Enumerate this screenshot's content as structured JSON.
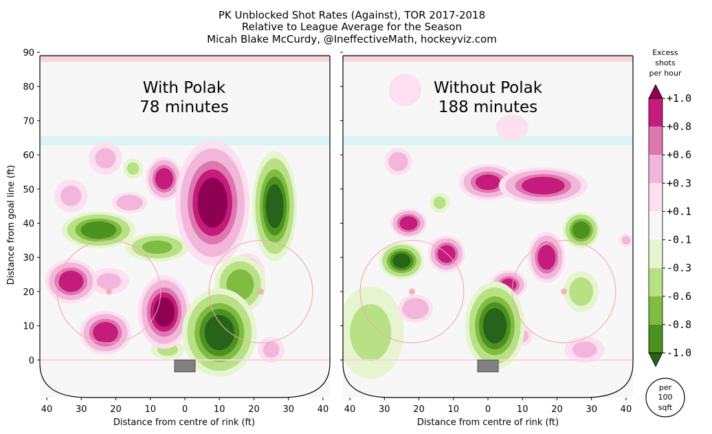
{
  "title": {
    "line1": "PK Unblocked Shot Rates (Against), TOR 2017-2018",
    "line2": "Relative to League Average for the Season",
    "line3": "Micah Blake McCurdy, @IneffectiveMath, hockeyviz.com"
  },
  "colors": {
    "rink_background": "#f7f7f7",
    "rink_outline": "#000000",
    "faceoff_circle": "#f4a7a7",
    "blue_line": "#d9f4f3",
    "red_line": "#f6d6d9",
    "net": "#808080"
  },
  "chart_data": [
    {
      "type": "heatmap",
      "panel": "left",
      "annotation_line1": "With Polak",
      "annotation_line2": "78 minutes",
      "xlabel": "Distance from centre of rink (ft)",
      "ylabel": "Distance from goal line (ft)",
      "xlim": [
        42,
        -42
      ],
      "ylim": [
        -11,
        90
      ],
      "xticks": [
        "40",
        "30",
        "20",
        "10",
        "0",
        "10",
        "20",
        "30",
        "40"
      ],
      "yticks": [
        "0",
        "10",
        "20",
        "30",
        "40",
        "50",
        "60",
        "70",
        "80",
        "90"
      ],
      "blobs": [
        {
          "x": -8,
          "y": 46,
          "value": 1.0,
          "rx": 10,
          "ry": 17
        },
        {
          "x": 6,
          "y": 14,
          "value": 1.0,
          "rx": 7,
          "ry": 10
        },
        {
          "x": 33,
          "y": 23,
          "value": 0.9,
          "rx": 7,
          "ry": 6
        },
        {
          "x": 23,
          "y": 8,
          "value": 0.9,
          "rx": 7,
          "ry": 6
        },
        {
          "x": 6,
          "y": 53,
          "value": 0.9,
          "rx": 5,
          "ry": 6
        },
        {
          "x": 16,
          "y": 46,
          "value": 0.5,
          "rx": 5,
          "ry": 3
        },
        {
          "x": -18,
          "y": 25,
          "value": 0.6,
          "rx": 5,
          "ry": 6
        },
        {
          "x": 23,
          "y": 59,
          "value": 0.3,
          "rx": 5,
          "ry": 5
        },
        {
          "x": 33,
          "y": 48,
          "value": 0.3,
          "rx": 5,
          "ry": 5
        },
        {
          "x": -25,
          "y": 3,
          "value": 0.3,
          "rx": 4,
          "ry": 4
        },
        {
          "x": 22,
          "y": 23,
          "value": 0.3,
          "rx": 6,
          "ry": 4
        },
        {
          "x": -26,
          "y": 45,
          "value": -1.0,
          "rx": 6,
          "ry": 15
        },
        {
          "x": 25,
          "y": 38,
          "value": -0.9,
          "rx": 10,
          "ry": 5
        },
        {
          "x": 8,
          "y": 33,
          "value": -0.6,
          "rx": 9,
          "ry": 4
        },
        {
          "x": -10,
          "y": 8,
          "value": -1.0,
          "rx": 10,
          "ry": 12
        },
        {
          "x": -16,
          "y": 22,
          "value": -0.7,
          "rx": 7,
          "ry": 8
        },
        {
          "x": 15,
          "y": 56,
          "value": -0.3,
          "rx": 3,
          "ry": 3
        },
        {
          "x": 5,
          "y": 3,
          "value": -0.3,
          "rx": 5,
          "ry": 3
        }
      ]
    },
    {
      "type": "heatmap",
      "panel": "right",
      "annotation_line1": "Without Polak",
      "annotation_line2": "188 minutes",
      "xlabel": "Distance from centre of rink (ft)",
      "ylabel": "",
      "xlim": [
        42,
        -42
      ],
      "ylim": [
        -11,
        90
      ],
      "xticks": [
        "40",
        "30",
        "20",
        "10",
        "0",
        "10",
        "20",
        "30",
        "40"
      ],
      "yticks": [],
      "blobs": [
        {
          "x": -16,
          "y": 51,
          "value": 0.9,
          "rx": 12,
          "ry": 5
        },
        {
          "x": 0,
          "y": 52,
          "value": 0.8,
          "rx": 8,
          "ry": 5
        },
        {
          "x": 23,
          "y": 40,
          "value": 0.9,
          "rx": 5,
          "ry": 4
        },
        {
          "x": 12,
          "y": 31,
          "value": 0.9,
          "rx": 5,
          "ry": 5
        },
        {
          "x": -17,
          "y": 30,
          "value": 0.9,
          "rx": 5,
          "ry": 7
        },
        {
          "x": -6,
          "y": 22,
          "value": 0.8,
          "rx": 5,
          "ry": 4
        },
        {
          "x": 21,
          "y": 15,
          "value": 0.5,
          "rx": 5,
          "ry": 4
        },
        {
          "x": 26,
          "y": 58,
          "value": 0.4,
          "rx": 4,
          "ry": 4
        },
        {
          "x": 24,
          "y": 79,
          "value": 0.25,
          "rx": 5,
          "ry": 5
        },
        {
          "x": -7,
          "y": 68,
          "value": 0.25,
          "rx": 5,
          "ry": 4
        },
        {
          "x": -28,
          "y": 3,
          "value": 0.3,
          "rx": 6,
          "ry": 4
        },
        {
          "x": -10,
          "y": 7,
          "value": 0.3,
          "rx": 3,
          "ry": 3
        },
        {
          "x": -40,
          "y": 35,
          "value": 0.3,
          "rx": 2,
          "ry": 2
        },
        {
          "x": 25,
          "y": 29,
          "value": -1.0,
          "rx": 6,
          "ry": 5
        },
        {
          "x": -27,
          "y": 38,
          "value": -0.9,
          "rx": 5,
          "ry": 5
        },
        {
          "x": -2,
          "y": 10,
          "value": -1.0,
          "rx": 8,
          "ry": 12
        },
        {
          "x": -27,
          "y": 20,
          "value": -0.4,
          "rx": 5,
          "ry": 6
        },
        {
          "x": 14,
          "y": 46,
          "value": -0.3,
          "rx": 3,
          "ry": 3
        },
        {
          "x": 34,
          "y": 8,
          "value": -0.3,
          "rx": 10,
          "ry": 14
        }
      ]
    }
  ],
  "colorbar": {
    "title_line1": "Excess",
    "title_line2": "shots",
    "title_line3": "per hour",
    "ticks": [
      "+1.0",
      "+0.8",
      "+0.6",
      "+0.3",
      "+0.1",
      "-0.1",
      "-0.3",
      "-0.6",
      "-0.8",
      "-1.0"
    ],
    "band_colors": [
      "#8e0152",
      "#c51b7d",
      "#de77ae",
      "#f1b6da",
      "#fde0ef",
      "#f7f7f7",
      "#e6f5d0",
      "#b8e186",
      "#7fbc41",
      "#4d9221",
      "#276419"
    ],
    "levels": [
      1.0,
      0.8,
      0.6,
      0.3,
      0.1,
      -0.1,
      -0.3,
      -0.6,
      -0.8,
      -1.0
    ]
  },
  "badge": {
    "line1": "per",
    "line2": "100",
    "line3": "sqft"
  }
}
